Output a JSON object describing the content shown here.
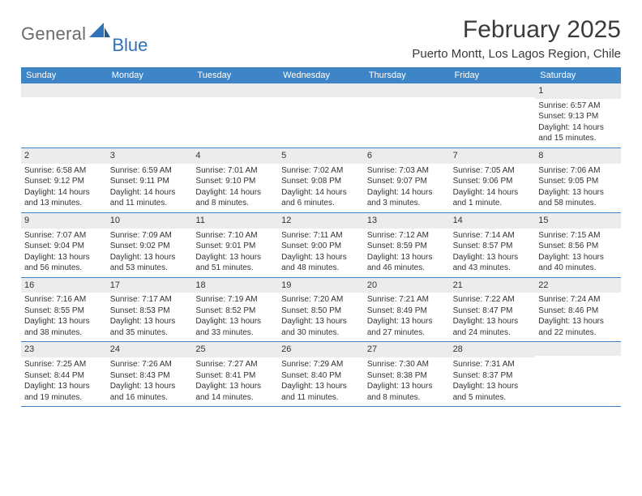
{
  "logo": {
    "general": "General",
    "blue": "Blue"
  },
  "title": "February 2025",
  "location": "Puerto Montt, Los Lagos Region, Chile",
  "colors": {
    "header_bg": "#3d85c6",
    "header_text": "#ffffff",
    "daynum_bg": "#ececec",
    "border": "#3d85c6",
    "logo_gray": "#6b6b6b",
    "logo_blue": "#2f72b8",
    "text": "#333333"
  },
  "weekdays": [
    "Sunday",
    "Monday",
    "Tuesday",
    "Wednesday",
    "Thursday",
    "Friday",
    "Saturday"
  ],
  "weeks": [
    [
      {
        "n": "",
        "sr": "",
        "ss": "",
        "dl": ""
      },
      {
        "n": "",
        "sr": "",
        "ss": "",
        "dl": ""
      },
      {
        "n": "",
        "sr": "",
        "ss": "",
        "dl": ""
      },
      {
        "n": "",
        "sr": "",
        "ss": "",
        "dl": ""
      },
      {
        "n": "",
        "sr": "",
        "ss": "",
        "dl": ""
      },
      {
        "n": "",
        "sr": "",
        "ss": "",
        "dl": ""
      },
      {
        "n": "1",
        "sr": "Sunrise: 6:57 AM",
        "ss": "Sunset: 9:13 PM",
        "dl": "Daylight: 14 hours and 15 minutes."
      }
    ],
    [
      {
        "n": "2",
        "sr": "Sunrise: 6:58 AM",
        "ss": "Sunset: 9:12 PM",
        "dl": "Daylight: 14 hours and 13 minutes."
      },
      {
        "n": "3",
        "sr": "Sunrise: 6:59 AM",
        "ss": "Sunset: 9:11 PM",
        "dl": "Daylight: 14 hours and 11 minutes."
      },
      {
        "n": "4",
        "sr": "Sunrise: 7:01 AM",
        "ss": "Sunset: 9:10 PM",
        "dl": "Daylight: 14 hours and 8 minutes."
      },
      {
        "n": "5",
        "sr": "Sunrise: 7:02 AM",
        "ss": "Sunset: 9:08 PM",
        "dl": "Daylight: 14 hours and 6 minutes."
      },
      {
        "n": "6",
        "sr": "Sunrise: 7:03 AM",
        "ss": "Sunset: 9:07 PM",
        "dl": "Daylight: 14 hours and 3 minutes."
      },
      {
        "n": "7",
        "sr": "Sunrise: 7:05 AM",
        "ss": "Sunset: 9:06 PM",
        "dl": "Daylight: 14 hours and 1 minute."
      },
      {
        "n": "8",
        "sr": "Sunrise: 7:06 AM",
        "ss": "Sunset: 9:05 PM",
        "dl": "Daylight: 13 hours and 58 minutes."
      }
    ],
    [
      {
        "n": "9",
        "sr": "Sunrise: 7:07 AM",
        "ss": "Sunset: 9:04 PM",
        "dl": "Daylight: 13 hours and 56 minutes."
      },
      {
        "n": "10",
        "sr": "Sunrise: 7:09 AM",
        "ss": "Sunset: 9:02 PM",
        "dl": "Daylight: 13 hours and 53 minutes."
      },
      {
        "n": "11",
        "sr": "Sunrise: 7:10 AM",
        "ss": "Sunset: 9:01 PM",
        "dl": "Daylight: 13 hours and 51 minutes."
      },
      {
        "n": "12",
        "sr": "Sunrise: 7:11 AM",
        "ss": "Sunset: 9:00 PM",
        "dl": "Daylight: 13 hours and 48 minutes."
      },
      {
        "n": "13",
        "sr": "Sunrise: 7:12 AM",
        "ss": "Sunset: 8:59 PM",
        "dl": "Daylight: 13 hours and 46 minutes."
      },
      {
        "n": "14",
        "sr": "Sunrise: 7:14 AM",
        "ss": "Sunset: 8:57 PM",
        "dl": "Daylight: 13 hours and 43 minutes."
      },
      {
        "n": "15",
        "sr": "Sunrise: 7:15 AM",
        "ss": "Sunset: 8:56 PM",
        "dl": "Daylight: 13 hours and 40 minutes."
      }
    ],
    [
      {
        "n": "16",
        "sr": "Sunrise: 7:16 AM",
        "ss": "Sunset: 8:55 PM",
        "dl": "Daylight: 13 hours and 38 minutes."
      },
      {
        "n": "17",
        "sr": "Sunrise: 7:17 AM",
        "ss": "Sunset: 8:53 PM",
        "dl": "Daylight: 13 hours and 35 minutes."
      },
      {
        "n": "18",
        "sr": "Sunrise: 7:19 AM",
        "ss": "Sunset: 8:52 PM",
        "dl": "Daylight: 13 hours and 33 minutes."
      },
      {
        "n": "19",
        "sr": "Sunrise: 7:20 AM",
        "ss": "Sunset: 8:50 PM",
        "dl": "Daylight: 13 hours and 30 minutes."
      },
      {
        "n": "20",
        "sr": "Sunrise: 7:21 AM",
        "ss": "Sunset: 8:49 PM",
        "dl": "Daylight: 13 hours and 27 minutes."
      },
      {
        "n": "21",
        "sr": "Sunrise: 7:22 AM",
        "ss": "Sunset: 8:47 PM",
        "dl": "Daylight: 13 hours and 24 minutes."
      },
      {
        "n": "22",
        "sr": "Sunrise: 7:24 AM",
        "ss": "Sunset: 8:46 PM",
        "dl": "Daylight: 13 hours and 22 minutes."
      }
    ],
    [
      {
        "n": "23",
        "sr": "Sunrise: 7:25 AM",
        "ss": "Sunset: 8:44 PM",
        "dl": "Daylight: 13 hours and 19 minutes."
      },
      {
        "n": "24",
        "sr": "Sunrise: 7:26 AM",
        "ss": "Sunset: 8:43 PM",
        "dl": "Daylight: 13 hours and 16 minutes."
      },
      {
        "n": "25",
        "sr": "Sunrise: 7:27 AM",
        "ss": "Sunset: 8:41 PM",
        "dl": "Daylight: 13 hours and 14 minutes."
      },
      {
        "n": "26",
        "sr": "Sunrise: 7:29 AM",
        "ss": "Sunset: 8:40 PM",
        "dl": "Daylight: 13 hours and 11 minutes."
      },
      {
        "n": "27",
        "sr": "Sunrise: 7:30 AM",
        "ss": "Sunset: 8:38 PM",
        "dl": "Daylight: 13 hours and 8 minutes."
      },
      {
        "n": "28",
        "sr": "Sunrise: 7:31 AM",
        "ss": "Sunset: 8:37 PM",
        "dl": "Daylight: 13 hours and 5 minutes."
      },
      {
        "n": "",
        "sr": "",
        "ss": "",
        "dl": ""
      }
    ]
  ]
}
